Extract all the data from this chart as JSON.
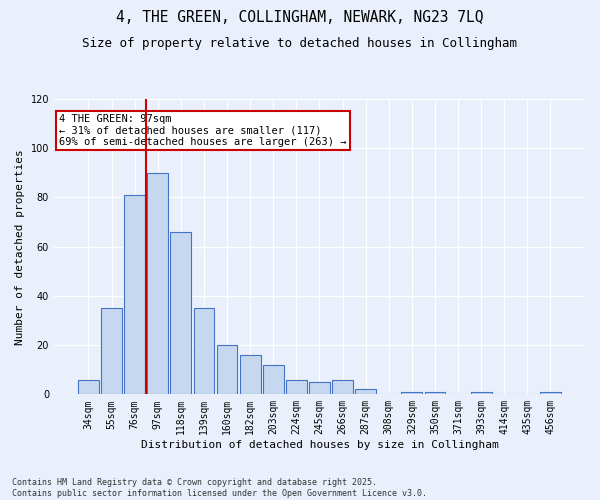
{
  "title": "4, THE GREEN, COLLINGHAM, NEWARK, NG23 7LQ",
  "subtitle": "Size of property relative to detached houses in Collingham",
  "xlabel": "Distribution of detached houses by size in Collingham",
  "ylabel": "Number of detached properties",
  "categories": [
    "34sqm",
    "55sqm",
    "76sqm",
    "97sqm",
    "118sqm",
    "139sqm",
    "160sqm",
    "182sqm",
    "203sqm",
    "224sqm",
    "245sqm",
    "266sqm",
    "287sqm",
    "308sqm",
    "329sqm",
    "350sqm",
    "371sqm",
    "393sqm",
    "414sqm",
    "435sqm",
    "456sqm"
  ],
  "values": [
    6,
    35,
    81,
    90,
    66,
    35,
    20,
    16,
    12,
    6,
    5,
    6,
    2,
    0,
    1,
    1,
    0,
    1,
    0,
    0,
    1
  ],
  "bar_color": "#c5d8f0",
  "bar_edge_color": "#4472c4",
  "background_color": "#eaf0fb",
  "grid_color": "#ffffff",
  "vline_color": "#cc0000",
  "annotation_text": "4 THE GREEN: 97sqm\n← 31% of detached houses are smaller (117)\n69% of semi-detached houses are larger (263) →",
  "annotation_box_color": "#ffffff",
  "annotation_box_edge": "#cc0000",
  "ylim": [
    0,
    120
  ],
  "yticks": [
    0,
    20,
    40,
    60,
    80,
    100,
    120
  ],
  "footer": "Contains HM Land Registry data © Crown copyright and database right 2025.\nContains public sector information licensed under the Open Government Licence v3.0.",
  "title_fontsize": 10.5,
  "subtitle_fontsize": 9,
  "axis_label_fontsize": 8,
  "tick_fontsize": 7,
  "annotation_fontsize": 7.5,
  "footer_fontsize": 6
}
